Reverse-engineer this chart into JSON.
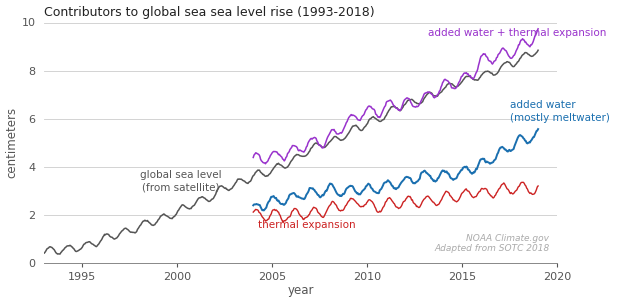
{
  "title": "Contributors to global sea sea level rise (1993-2018)",
  "xlabel": "year",
  "ylabel": "centimeters",
  "xlim": [
    1993,
    2020
  ],
  "ylim": [
    0,
    10
  ],
  "yticks": [
    0,
    2,
    4,
    6,
    8,
    10
  ],
  "xticks": [
    1995,
    2000,
    2005,
    2010,
    2015,
    2020
  ],
  "annotation_noaa": "NOAA Climate.gov",
  "annotation_sotc": "Adapted from SOTC 2018",
  "color_global": "#555555",
  "color_thermal": "#cc2222",
  "color_added_water": "#1a6faf",
  "color_sum": "#9933cc",
  "label_global": "global sea level\n(from satellite)",
  "label_thermal": "thermal expansion",
  "label_added_water": "added water\n(mostly meltwater)",
  "label_sum": "added water + thermal expansion",
  "background_color": "#ffffff"
}
